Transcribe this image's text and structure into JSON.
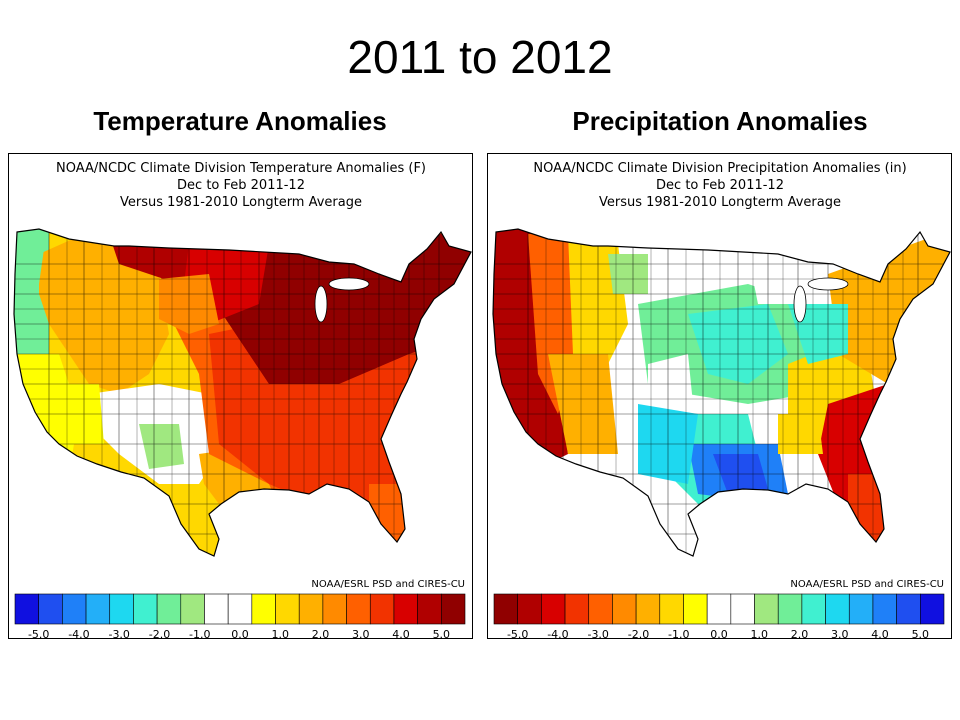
{
  "slide": {
    "title": "2011 to 2012"
  },
  "panels": [
    {
      "heading": "Temperature Anomalies",
      "header_line1": "NOAA/NCDC Climate Division Temperature Anomalies (F)",
      "header_line2": "Dec to Feb 2011-12",
      "header_line3": "Versus 1981-2010 Longterm Average",
      "credit": "NOAA/ESRL PSD and CIRES-CU",
      "colorbar_colors": [
        "#1010e0",
        "#1f4ff0",
        "#1f80f8",
        "#23aff8",
        "#1ed8f0",
        "#40f0d0",
        "#70ee98",
        "#a0e880",
        "#ffffff",
        "#ffffff",
        "#ffff00",
        "#ffd800",
        "#ffb000",
        "#ff8a00",
        "#ff6000",
        "#f23300",
        "#d80000",
        "#b00000",
        "#900000"
      ],
      "tick_labels": [
        "-5.0",
        "-4.0",
        "-3.0",
        "-2.0",
        "-1.0",
        "0.0",
        "1.0",
        "2.0",
        "3.0",
        "4.0",
        "5.0"
      ]
    },
    {
      "heading": "Precipitation Anomalies",
      "header_line1": "NOAA/NCDC Climate Division Precipitation Anomalies (in)",
      "header_line2": "Dec to Feb 2011-12",
      "header_line3": "Versus 1981-2010 Longterm Average",
      "credit": "NOAA/ESRL PSD and CIRES-CU",
      "colorbar_colors": [
        "#900000",
        "#b00000",
        "#d80000",
        "#f23300",
        "#ff6000",
        "#ff8a00",
        "#ffb000",
        "#ffd800",
        "#ffff00",
        "#ffffff",
        "#ffffff",
        "#a0e880",
        "#70ee98",
        "#40f0d0",
        "#1ed8f0",
        "#23aff8",
        "#1f80f8",
        "#1f4ff0",
        "#1010e0"
      ],
      "tick_labels": [
        "-5.0",
        "-4.0",
        "-3.0",
        "-2.0",
        "-1.0",
        "0.0",
        "1.0",
        "2.0",
        "3.0",
        "4.0",
        "5.0"
      ]
    }
  ]
}
